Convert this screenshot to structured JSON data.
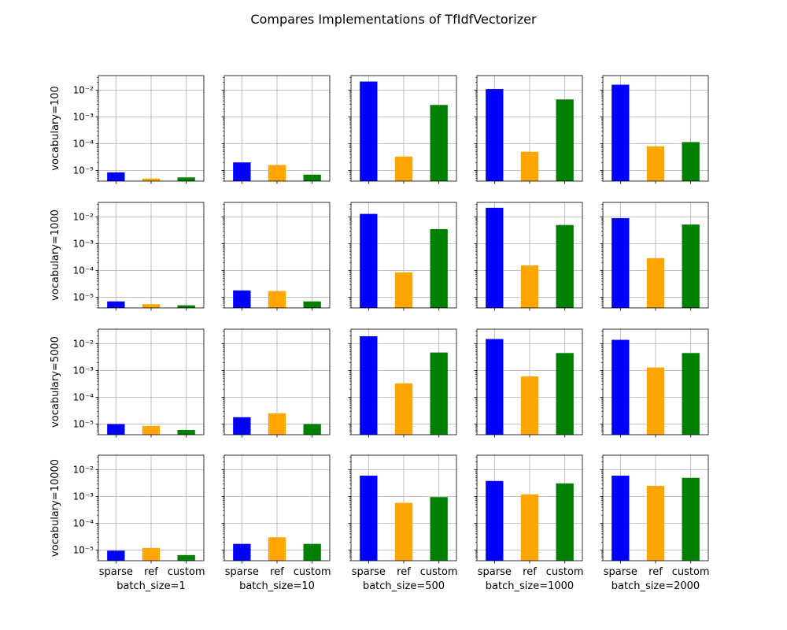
{
  "chart_data": {
    "type": "bar",
    "title": "Compares Implementations of TfIdfVectorizer",
    "yscale": "log",
    "ylim": [
      4e-06,
      0.035
    ],
    "grid": true,
    "ytick_values": [
      1e-05,
      0.0001,
      0.001,
      0.01
    ],
    "ytick_labels": [
      "10⁻⁵",
      "10⁻⁴",
      "10⁻³",
      "10⁻²"
    ],
    "categories": [
      "sparse",
      "ref",
      "custom"
    ],
    "colors": [
      "#0000ff",
      "#ffa500",
      "#008000"
    ],
    "col_labels": [
      "batch_size=1",
      "batch_size=10",
      "batch_size=500",
      "batch_size=1000",
      "batch_size=2000"
    ],
    "row_labels": [
      "vocabulary=100",
      "vocabulary=1000",
      "vocabulary=5000",
      "vocabulary=10000"
    ],
    "panels": [
      [
        [
          8.5e-06,
          5e-06,
          5.5e-06
        ],
        [
          2e-05,
          1.6e-05,
          7e-06
        ],
        [
          0.021,
          3.3e-05,
          0.0028
        ],
        [
          0.011,
          5e-05,
          0.0045
        ],
        [
          0.016,
          8e-05,
          0.000115
        ]
      ],
      [
        [
          7e-06,
          5.5e-06,
          5e-06
        ],
        [
          1.8e-05,
          1.7e-05,
          7e-06
        ],
        [
          0.013,
          8.5e-05,
          0.0035
        ],
        [
          0.022,
          0.000155,
          0.005
        ],
        [
          0.009,
          0.00029,
          0.0052
        ]
      ],
      [
        [
          1e-05,
          8.5e-06,
          6e-06
        ],
        [
          1.8e-05,
          2.5e-05,
          1e-05
        ],
        [
          0.019,
          0.00033,
          0.0047
        ],
        [
          0.015,
          0.0006,
          0.0045
        ],
        [
          0.014,
          0.0013,
          0.0045
        ]
      ],
      [
        [
          9.5e-06,
          1.2e-05,
          6.5e-06
        ],
        [
          1.7e-05,
          3e-05,
          1.7e-05
        ],
        [
          0.006,
          0.00058,
          0.00095
        ],
        [
          0.0038,
          0.0012,
          0.0031
        ],
        [
          0.006,
          0.0025,
          0.005
        ]
      ]
    ]
  }
}
